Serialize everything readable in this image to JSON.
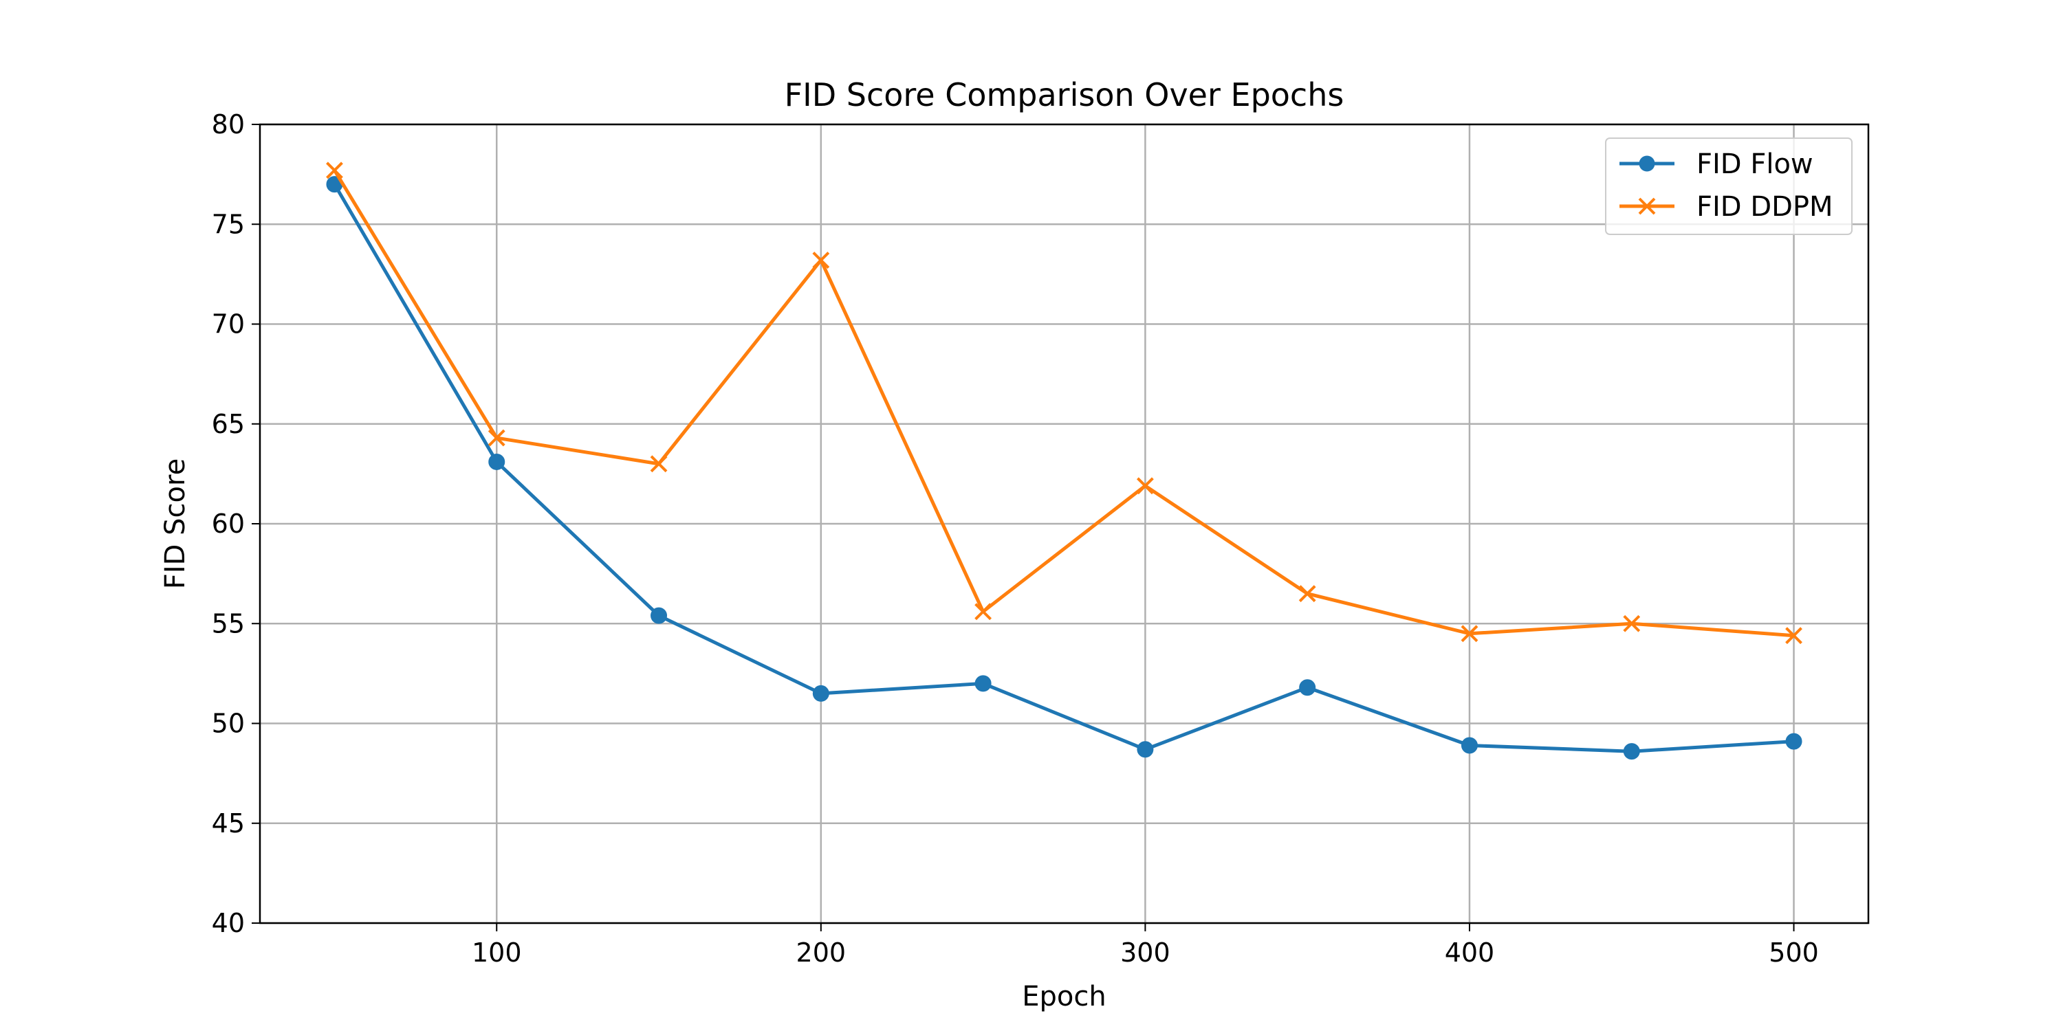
{
  "chart_data": {
    "type": "line",
    "title": "FID Score Comparison Over Epochs",
    "xlabel": "Epoch",
    "ylabel": "FID Score",
    "x": [
      50,
      100,
      150,
      200,
      250,
      300,
      350,
      400,
      450,
      500
    ],
    "xlim": [
      27,
      523
    ],
    "ylim": [
      40,
      80
    ],
    "xticks": [
      100,
      200,
      300,
      400,
      500
    ],
    "yticks": [
      40,
      45,
      50,
      55,
      60,
      65,
      70,
      75,
      80
    ],
    "grid": true,
    "legend_position": "top-right",
    "series": [
      {
        "name": "FID Flow",
        "color": "#1f77b4",
        "marker": "circle",
        "values": [
          77.0,
          63.1,
          55.4,
          51.5,
          52.0,
          48.7,
          51.8,
          48.9,
          48.6,
          49.1
        ]
      },
      {
        "name": "FID DDPM",
        "color": "#ff7f0e",
        "marker": "x",
        "values": [
          77.7,
          64.3,
          63.0,
          73.2,
          55.6,
          61.9,
          56.5,
          54.5,
          55.0,
          54.4
        ]
      }
    ]
  }
}
